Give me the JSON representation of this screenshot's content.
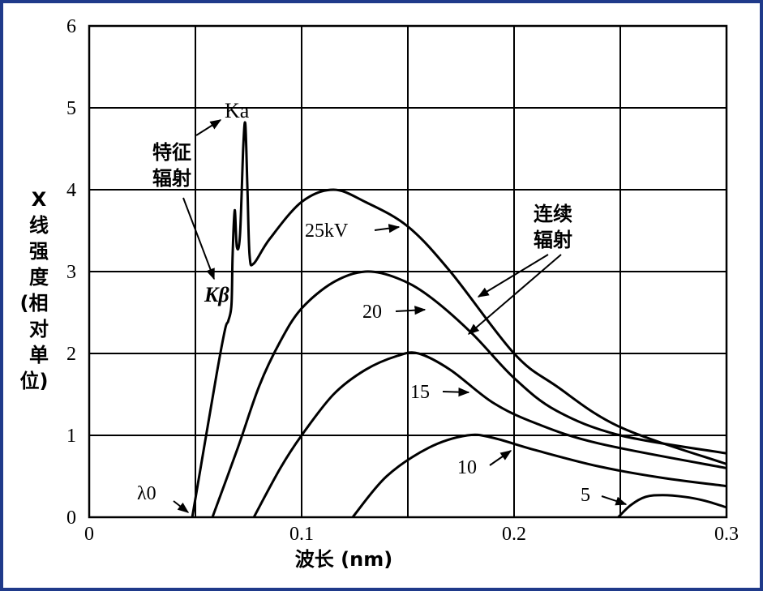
{
  "chart_data": {
    "type": "line",
    "xlabel": "波长 (nm)",
    "ylabel": [
      "X",
      "线",
      "强",
      "度",
      "(相",
      "对",
      "单",
      "位)"
    ],
    "xlim": [
      0,
      0.3
    ],
    "ylim": [
      0,
      6
    ],
    "xticks": [
      {
        "value": 0,
        "label": "0"
      },
      {
        "value": 0.1,
        "label": "0.1"
      },
      {
        "value": 0.2,
        "label": "0.2"
      },
      {
        "value": 0.3,
        "label": "0.3"
      }
    ],
    "yticks": [
      {
        "value": 0,
        "label": "0"
      },
      {
        "value": 1,
        "label": "1"
      },
      {
        "value": 2,
        "label": "2"
      },
      {
        "value": 3,
        "label": "3"
      },
      {
        "value": 4,
        "label": "4"
      },
      {
        "value": 5,
        "label": "5"
      },
      {
        "value": 6,
        "label": "6"
      }
    ],
    "grid": true,
    "series": [
      {
        "name": "25kV",
        "points": [
          [
            0.0485,
            0
          ],
          [
            0.06,
            1.75
          ],
          [
            0.064,
            2.3
          ],
          [
            0.0655,
            2.4
          ],
          [
            0.067,
            2.6
          ],
          [
            0.0675,
            3.2
          ],
          [
            0.0685,
            3.75
          ],
          [
            0.0695,
            3.3
          ],
          [
            0.071,
            3.45
          ],
          [
            0.0725,
            4.5
          ],
          [
            0.0735,
            4.8
          ],
          [
            0.0745,
            4.0
          ],
          [
            0.0755,
            3.2
          ],
          [
            0.0775,
            3.1
          ],
          [
            0.085,
            3.4
          ],
          [
            0.1,
            3.85
          ],
          [
            0.115,
            4.0
          ],
          [
            0.13,
            3.85
          ],
          [
            0.15,
            3.55
          ],
          [
            0.17,
            3.0
          ],
          [
            0.2,
            2.0
          ],
          [
            0.22,
            1.6
          ],
          [
            0.25,
            1.1
          ],
          [
            0.3,
            0.65
          ]
        ]
      },
      {
        "name": "20",
        "points": [
          [
            0.058,
            0
          ],
          [
            0.07,
            0.85
          ],
          [
            0.08,
            1.6
          ],
          [
            0.09,
            2.15
          ],
          [
            0.1,
            2.55
          ],
          [
            0.115,
            2.87
          ],
          [
            0.13,
            3.0
          ],
          [
            0.145,
            2.92
          ],
          [
            0.16,
            2.7
          ],
          [
            0.18,
            2.25
          ],
          [
            0.2,
            1.7
          ],
          [
            0.22,
            1.3
          ],
          [
            0.25,
            1.0
          ],
          [
            0.3,
            0.78
          ]
        ]
      },
      {
        "name": "15",
        "points": [
          [
            0.0775,
            0
          ],
          [
            0.09,
            0.6
          ],
          [
            0.1,
            1.0
          ],
          [
            0.115,
            1.5
          ],
          [
            0.13,
            1.8
          ],
          [
            0.145,
            1.97
          ],
          [
            0.155,
            2.0
          ],
          [
            0.17,
            1.8
          ],
          [
            0.19,
            1.4
          ],
          [
            0.21,
            1.15
          ],
          [
            0.24,
            0.9
          ],
          [
            0.3,
            0.6
          ]
        ]
      },
      {
        "name": "10",
        "points": [
          [
            0.124,
            0
          ],
          [
            0.14,
            0.5
          ],
          [
            0.16,
            0.85
          ],
          [
            0.178,
            1.0
          ],
          [
            0.19,
            0.97
          ],
          [
            0.21,
            0.82
          ],
          [
            0.24,
            0.62
          ],
          [
            0.27,
            0.48
          ],
          [
            0.3,
            0.38
          ]
        ]
      },
      {
        "name": "5",
        "points": [
          [
            0.249,
            0
          ],
          [
            0.255,
            0.15
          ],
          [
            0.262,
            0.25
          ],
          [
            0.27,
            0.27
          ],
          [
            0.28,
            0.25
          ],
          [
            0.29,
            0.2
          ],
          [
            0.3,
            0.12
          ]
        ]
      }
    ],
    "annotations": {
      "lambda0": "λ0",
      "ka": "Ka",
      "kb": "Kβ",
      "characteristic": [
        "特征",
        "辐射"
      ],
      "continuous": [
        "连续",
        "辐射"
      ],
      "series_labels": [
        "25kV",
        "20",
        "15",
        "10",
        "5"
      ]
    }
  }
}
